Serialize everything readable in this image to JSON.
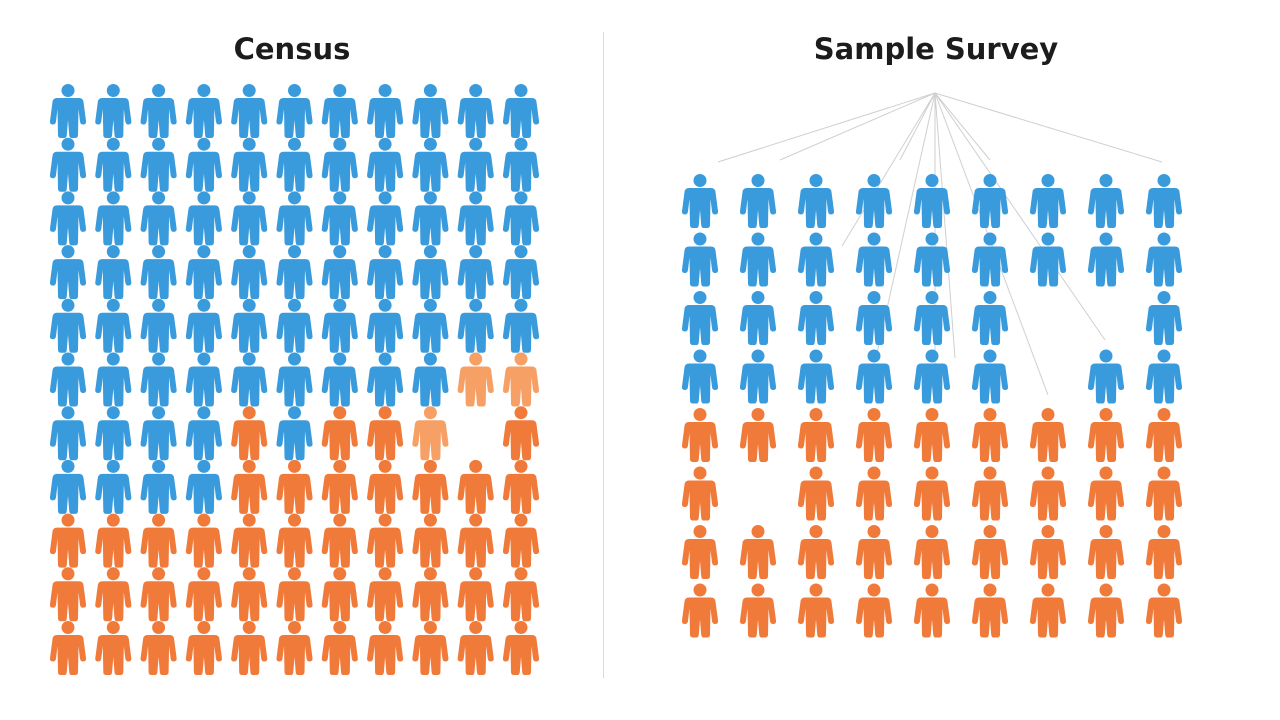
{
  "titles": {
    "census": "Census",
    "sample": "Sample Survey"
  },
  "colors": {
    "blue": "#3a9bdc",
    "orange": "#f07a3a",
    "light_orange": "#f6a066",
    "line": "#cfcfcf"
  },
  "icon": "person-icon",
  "census": {
    "rows": [
      "BBBBBBBBBBB",
      "BBBBBBBBBBB",
      "BBBBBBBBBBB",
      "BBBBBBBBBBB",
      "BBBBBBBBBBB",
      "BBBBBBBBBLL",
      "BBBBOBOOL_O",
      "BBBBOOOOOOO",
      "OOOOOOOOOOO",
      "OOOOOOOOOOO",
      "OOOOOOOOOOO"
    ]
  },
  "sample": {
    "rows": [
      "BBBBBBBBB",
      "BBBBBBBBB",
      "BBBBBB__B",
      "BBBBBB_BB",
      "OOOOOOOOO",
      "O_OOOOOOO",
      "OOOOOOOOO",
      "OOOOOOOOO"
    ]
  }
}
